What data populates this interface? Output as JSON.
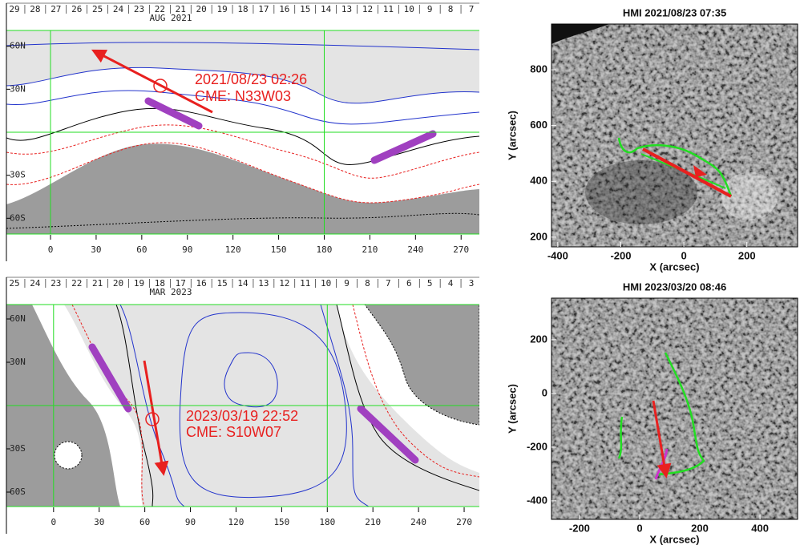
{
  "chart_data": [
    {
      "type": "synoptic-map",
      "top_labels": [
        "29",
        "28",
        "27",
        "26",
        "25",
        "24",
        "23",
        "22",
        "21",
        "20",
        "19",
        "18",
        "17",
        "16",
        "15",
        "14",
        "13",
        "12",
        "11",
        "10",
        "9",
        "8",
        "7"
      ],
      "month": "AUG 2021",
      "xlim": [
        -29,
        282
      ],
      "ylim": [
        -71,
        71
      ],
      "xticks": [
        0,
        30,
        60,
        90,
        120,
        150,
        180,
        210,
        240,
        270
      ],
      "yticks": [
        {
          "value": 60,
          "label": "60N"
        },
        {
          "value": 30,
          "label": "30N"
        },
        {
          "value": -30,
          "label": "30S"
        },
        {
          "value": -60,
          "label": "60S"
        }
      ],
      "grid_x": [
        0,
        180
      ],
      "grid_y": [
        0
      ],
      "annotations": [
        "2021/08/23 02:26",
        "CME: N33W03"
      ]
    },
    {
      "type": "synoptic-map",
      "top_labels": [
        "25",
        "24",
        "23",
        "22",
        "21",
        "20",
        "19",
        "18",
        "17",
        "16",
        "15",
        "14",
        "13",
        "12",
        "11",
        "10",
        "9",
        "8",
        "7",
        "6",
        "5",
        "4",
        "3"
      ],
      "month": "MAR 2023",
      "xlim": [
        -31,
        280
      ],
      "ylim": [
        -70,
        70
      ],
      "xticks": [
        0,
        30,
        60,
        90,
        120,
        150,
        180,
        210,
        240,
        270
      ],
      "yticks": [
        {
          "value": 60,
          "label": "60N"
        },
        {
          "value": 30,
          "label": "30N"
        },
        {
          "value": -30,
          "label": "30S"
        },
        {
          "value": -60,
          "label": "60S"
        }
      ],
      "grid_x": [
        0,
        180
      ],
      "grid_y": [
        0
      ],
      "annotations": [
        "2023/03/19 22:52",
        "CME: S10W07"
      ]
    },
    {
      "type": "magnetogram",
      "title": "HMI 2021/08/23 07:35",
      "x_label": "X (arcsec)",
      "y_label": "Y (arcsec)",
      "xlim": [
        -420,
        361
      ],
      "ylim": [
        165,
        964
      ],
      "xticks": [
        -400,
        -200,
        0,
        200
      ],
      "yticks": [
        200,
        400,
        600,
        800
      ]
    },
    {
      "type": "magnetogram",
      "title": "HMI 2023/03/20 08:46",
      "x_label": "X (arcsec)",
      "y_label": "Y (arcsec)",
      "xlim": [
        -293,
        525
      ],
      "ylim": [
        -469,
        355
      ],
      "xticks": [
        -200,
        0,
        200,
        400
      ],
      "yticks": [
        -400,
        -200,
        0,
        200
      ]
    }
  ]
}
